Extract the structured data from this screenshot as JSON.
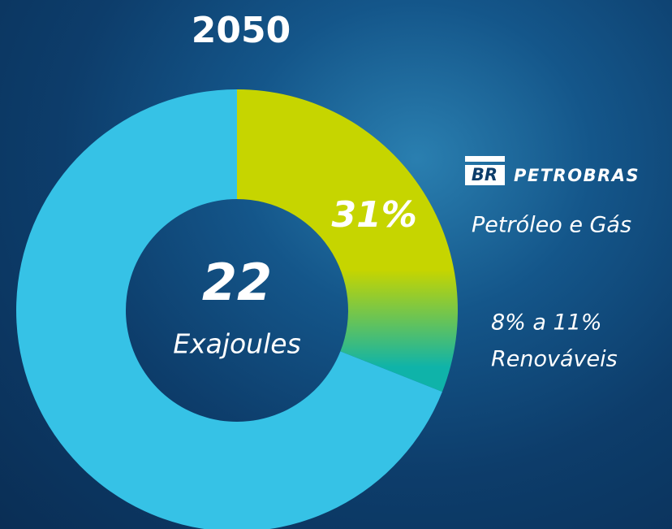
{
  "chart_data": {
    "type": "donut",
    "title": "2050",
    "categories": [
      null,
      null
    ],
    "values": [
      31,
      69
    ],
    "value_labels": [
      "31%",
      null
    ],
    "colors": [
      "#c6d500",
      "#36c2e6"
    ],
    "gradient_end": "#0fb3a9",
    "center_value": 22,
    "center_unit": "Exajoules",
    "logo": "BR",
    "brand": "PETROBRAS",
    "legend": [
      "Petróleo e Gás",
      "8% a 11%",
      "Renováveis"
    ]
  }
}
